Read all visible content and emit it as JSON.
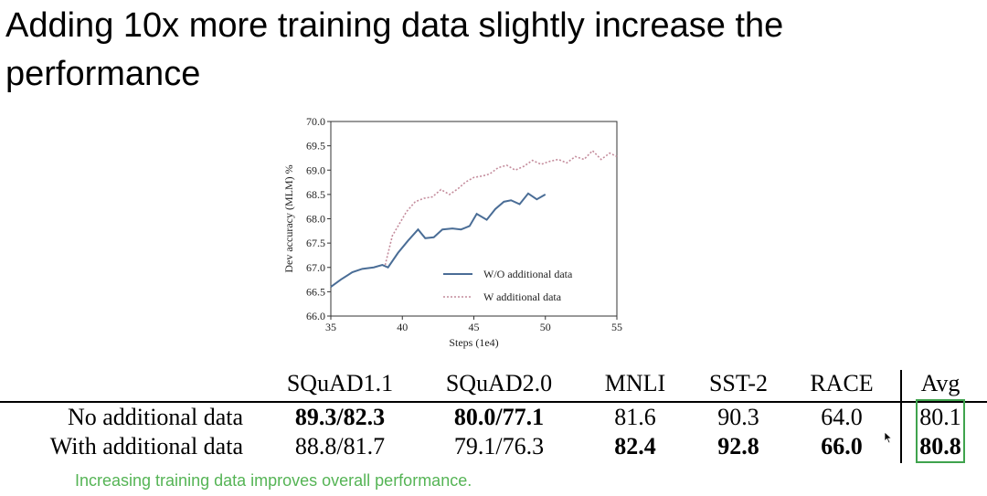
{
  "slide": {
    "title": "Adding 10x more training data slightly increase the performance",
    "footnote": "Increasing training data improves overall performance."
  },
  "chart_data": {
    "type": "line",
    "xlabel": "Steps (1e4)",
    "ylabel": "Dev accuracy (MLM) %",
    "xlim": [
      35,
      55
    ],
    "ylim": [
      66.0,
      70.0
    ],
    "xticks": [
      "35",
      "40",
      "45",
      "50",
      "55"
    ],
    "yticks": [
      "66.0",
      "66.5",
      "67.0",
      "67.5",
      "68.0",
      "68.5",
      "69.0",
      "69.5",
      "70.0"
    ],
    "legend_position": "lower-right",
    "grid": false,
    "series": [
      {
        "name": "W/O additional data",
        "style": "solid",
        "color": "#4a6d96",
        "x": [
          35,
          35.7,
          36.5,
          37.2,
          38.0,
          38.6,
          39.0,
          39.7,
          40.4,
          41.1,
          41.6,
          42.2,
          42.8,
          43.5,
          44.1,
          44.7,
          45.2,
          45.9,
          46.5,
          47.1,
          47.6,
          48.2,
          48.8,
          49.4,
          50.0
        ],
        "y": [
          66.6,
          66.75,
          66.9,
          66.97,
          67.0,
          67.05,
          67.0,
          67.3,
          67.55,
          67.78,
          67.6,
          67.62,
          67.78,
          67.8,
          67.78,
          67.85,
          68.1,
          67.98,
          68.2,
          68.35,
          68.38,
          68.3,
          68.52,
          68.4,
          68.5
        ]
      },
      {
        "name": "W additional data",
        "style": "dotted",
        "color": "#c48c9c",
        "x": [
          38.8,
          39.3,
          39.8,
          40.3,
          40.9,
          41.5,
          42.1,
          42.7,
          43.3,
          43.9,
          44.4,
          45.0,
          45.6,
          46.1,
          46.7,
          47.3,
          47.9,
          48.5,
          49.1,
          49.7,
          50.3,
          50.9,
          51.5,
          52.1,
          52.7,
          53.3,
          53.9,
          54.5,
          55.0
        ],
        "y": [
          67.05,
          67.65,
          67.9,
          68.15,
          68.35,
          68.42,
          68.45,
          68.6,
          68.5,
          68.62,
          68.75,
          68.85,
          68.88,
          68.92,
          69.05,
          69.1,
          69.0,
          69.08,
          69.2,
          69.12,
          69.18,
          69.22,
          69.15,
          69.28,
          69.22,
          69.4,
          69.22,
          69.35,
          69.28
        ]
      }
    ]
  },
  "table": {
    "columns": [
      "",
      "SQuAD1.1",
      "SQuAD2.0",
      "MNLI",
      "SST-2",
      "RACE",
      "Avg"
    ],
    "rows": [
      {
        "label": "No additional data",
        "cells": [
          "89.3/82.3",
          "80.0/77.1",
          "81.6",
          "90.3",
          "64.0",
          "80.1"
        ],
        "bold": [
          true,
          true,
          false,
          false,
          false,
          false
        ]
      },
      {
        "label": "With additional data",
        "cells": [
          "88.8/81.7",
          "79.1/76.3",
          "82.4",
          "92.8",
          "66.0",
          "80.8"
        ],
        "bold": [
          false,
          false,
          true,
          true,
          true,
          true
        ]
      }
    ],
    "highlight_color": "#3fa34d"
  }
}
